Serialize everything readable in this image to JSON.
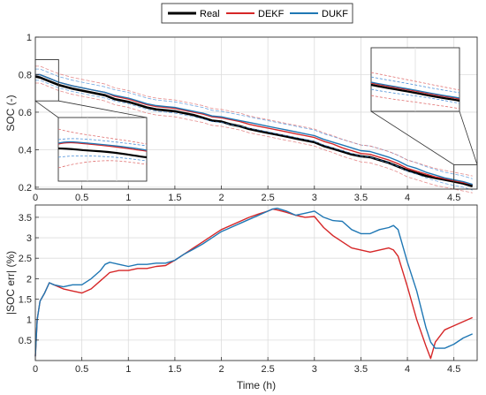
{
  "chart_data": [
    {
      "type": "line",
      "xlabel": "",
      "ylabel": "SOC (-)",
      "xlim": [
        0,
        4.75
      ],
      "ylim": [
        0.19,
        1.0
      ],
      "xticks": [
        "0",
        "0.5",
        "1",
        "1.5",
        "2",
        "2.5",
        "3",
        "3.5",
        "4",
        "4.5"
      ],
      "yticks": [
        "0.2",
        "0.4",
        "0.6",
        "0.8",
        "1"
      ],
      "grid": true,
      "legend": "top-center, outside",
      "series": [
        {
          "name": "Real",
          "color": "#000000",
          "x": [
            0,
            0.05,
            0.15,
            0.25,
            0.4,
            0.5,
            0.6,
            0.75,
            0.85,
            1.0,
            1.1,
            1.2,
            1.3,
            1.4,
            1.5,
            1.6,
            1.7,
            1.8,
            1.9,
            2.0,
            2.1,
            2.2,
            2.3,
            2.4,
            2.5,
            2.6,
            2.7,
            2.8,
            2.9,
            3.0,
            3.1,
            3.2,
            3.3,
            3.4,
            3.5,
            3.6,
            3.7,
            3.8,
            3.9,
            4.0,
            4.1,
            4.2,
            4.3,
            4.4,
            4.5,
            4.6,
            4.7
          ],
          "y": [
            0.79,
            0.785,
            0.765,
            0.745,
            0.725,
            0.715,
            0.705,
            0.69,
            0.67,
            0.655,
            0.64,
            0.625,
            0.615,
            0.61,
            0.605,
            0.595,
            0.585,
            0.57,
            0.555,
            0.55,
            0.535,
            0.525,
            0.51,
            0.5,
            0.49,
            0.48,
            0.47,
            0.46,
            0.45,
            0.44,
            0.42,
            0.405,
            0.39,
            0.375,
            0.365,
            0.36,
            0.345,
            0.33,
            0.31,
            0.29,
            0.275,
            0.26,
            0.25,
            0.24,
            0.23,
            0.22,
            0.205
          ]
        },
        {
          "name": "DEKF",
          "color": "#d62728",
          "x": [
            0,
            0.05,
            0.15,
            0.25,
            0.4,
            0.5,
            0.6,
            0.75,
            0.85,
            1.0,
            1.1,
            1.2,
            1.3,
            1.4,
            1.5,
            1.6,
            1.7,
            1.8,
            1.9,
            2.0,
            2.1,
            2.2,
            2.3,
            2.4,
            2.5,
            2.6,
            2.7,
            2.8,
            2.9,
            3.0,
            3.1,
            3.2,
            3.3,
            3.4,
            3.5,
            3.6,
            3.7,
            3.8,
            3.9,
            4.0,
            4.1,
            4.2,
            4.3,
            4.4,
            4.5,
            4.6,
            4.7
          ],
          "y": [
            0.8,
            0.8,
            0.78,
            0.76,
            0.74,
            0.73,
            0.72,
            0.705,
            0.685,
            0.67,
            0.655,
            0.64,
            0.63,
            0.625,
            0.62,
            0.61,
            0.6,
            0.59,
            0.575,
            0.57,
            0.56,
            0.55,
            0.535,
            0.525,
            0.515,
            0.505,
            0.495,
            0.485,
            0.475,
            0.465,
            0.445,
            0.43,
            0.41,
            0.395,
            0.38,
            0.375,
            0.36,
            0.345,
            0.325,
            0.3,
            0.285,
            0.27,
            0.255,
            0.245,
            0.235,
            0.225,
            0.215
          ]
        },
        {
          "name": "DUKF",
          "color": "#1f77b4",
          "x": [
            0,
            0.05,
            0.15,
            0.25,
            0.4,
            0.5,
            0.6,
            0.75,
            0.85,
            1.0,
            1.1,
            1.2,
            1.3,
            1.4,
            1.5,
            1.6,
            1.7,
            1.8,
            1.9,
            2.0,
            2.1,
            2.2,
            2.3,
            2.4,
            2.5,
            2.6,
            2.7,
            2.8,
            2.9,
            3.0,
            3.1,
            3.2,
            3.3,
            3.4,
            3.5,
            3.6,
            3.7,
            3.8,
            3.9,
            4.0,
            4.1,
            4.2,
            4.3,
            4.4,
            4.5,
            4.6,
            4.7
          ],
          "y": [
            0.8,
            0.8,
            0.78,
            0.76,
            0.74,
            0.73,
            0.72,
            0.705,
            0.69,
            0.675,
            0.66,
            0.645,
            0.635,
            0.63,
            0.625,
            0.615,
            0.605,
            0.595,
            0.58,
            0.575,
            0.565,
            0.555,
            0.545,
            0.535,
            0.525,
            0.515,
            0.505,
            0.495,
            0.485,
            0.475,
            0.455,
            0.44,
            0.425,
            0.41,
            0.395,
            0.39,
            0.375,
            0.36,
            0.34,
            0.315,
            0.3,
            0.28,
            0.265,
            0.25,
            0.24,
            0.23,
            0.215
          ]
        }
      ]
    },
    {
      "type": "line",
      "xlabel": "Time (h)",
      "ylabel": "|SOC err| (%)",
      "xlim": [
        0,
        4.75
      ],
      "ylim": [
        0,
        3.8
      ],
      "xticks": [
        "0",
        "0.5",
        "1",
        "1.5",
        "2",
        "2.5",
        "3",
        "3.5",
        "4",
        "4.5"
      ],
      "yticks": [
        "0.5",
        "1",
        "1.5",
        "2",
        "2.5",
        "3",
        "3.5"
      ],
      "grid": true,
      "series": [
        {
          "name": "DEKF",
          "color": "#d62728",
          "x": [
            0,
            0.02,
            0.05,
            0.1,
            0.15,
            0.2,
            0.3,
            0.4,
            0.5,
            0.6,
            0.7,
            0.75,
            0.8,
            0.9,
            1.0,
            1.1,
            1.2,
            1.3,
            1.4,
            1.5,
            1.6,
            1.7,
            1.8,
            1.9,
            2.0,
            2.1,
            2.2,
            2.3,
            2.4,
            2.5,
            2.55,
            2.6,
            2.7,
            2.8,
            2.9,
            3.0,
            3.1,
            3.2,
            3.3,
            3.4,
            3.5,
            3.6,
            3.7,
            3.8,
            3.85,
            3.9,
            4.0,
            4.1,
            4.2,
            4.25,
            4.3,
            4.4,
            4.5,
            4.6,
            4.7
          ],
          "y": [
            0.1,
            1.0,
            1.45,
            1.65,
            1.9,
            1.85,
            1.75,
            1.7,
            1.65,
            1.75,
            1.95,
            2.05,
            2.15,
            2.2,
            2.2,
            2.25,
            2.25,
            2.3,
            2.32,
            2.45,
            2.6,
            2.75,
            2.9,
            3.05,
            3.2,
            3.3,
            3.4,
            3.5,
            3.58,
            3.65,
            3.7,
            3.68,
            3.62,
            3.55,
            3.5,
            3.52,
            3.25,
            3.05,
            2.9,
            2.75,
            2.7,
            2.65,
            2.7,
            2.75,
            2.7,
            2.55,
            1.8,
            1.0,
            0.35,
            0.05,
            0.45,
            0.75,
            0.85,
            0.95,
            1.05
          ]
        },
        {
          "name": "DUKF",
          "color": "#1f77b4",
          "x": [
            0,
            0.02,
            0.05,
            0.1,
            0.15,
            0.2,
            0.3,
            0.4,
            0.5,
            0.6,
            0.7,
            0.75,
            0.8,
            0.9,
            1.0,
            1.1,
            1.2,
            1.3,
            1.4,
            1.5,
            1.6,
            1.7,
            1.8,
            1.9,
            2.0,
            2.1,
            2.2,
            2.3,
            2.4,
            2.5,
            2.55,
            2.6,
            2.7,
            2.8,
            2.9,
            3.0,
            3.1,
            3.2,
            3.3,
            3.4,
            3.5,
            3.6,
            3.7,
            3.8,
            3.85,
            3.9,
            4.0,
            4.1,
            4.2,
            4.25,
            4.3,
            4.4,
            4.5,
            4.6,
            4.7
          ],
          "y": [
            0.1,
            1.0,
            1.45,
            1.65,
            1.9,
            1.85,
            1.8,
            1.85,
            1.85,
            2.0,
            2.2,
            2.35,
            2.4,
            2.35,
            2.3,
            2.35,
            2.35,
            2.38,
            2.38,
            2.45,
            2.6,
            2.72,
            2.85,
            3.0,
            3.15,
            3.25,
            3.35,
            3.45,
            3.55,
            3.65,
            3.7,
            3.72,
            3.65,
            3.55,
            3.6,
            3.65,
            3.5,
            3.42,
            3.4,
            3.2,
            3.1,
            3.1,
            3.2,
            3.25,
            3.3,
            3.2,
            2.4,
            1.7,
            0.8,
            0.45,
            0.3,
            0.3,
            0.4,
            0.55,
            0.65
          ]
        }
      ]
    }
  ],
  "legend": {
    "entries": [
      {
        "label": "Real",
        "color": "#000000"
      },
      {
        "label": "DEKF",
        "color": "#d62728"
      },
      {
        "label": "DUKF",
        "color": "#1f77b4"
      }
    ]
  }
}
